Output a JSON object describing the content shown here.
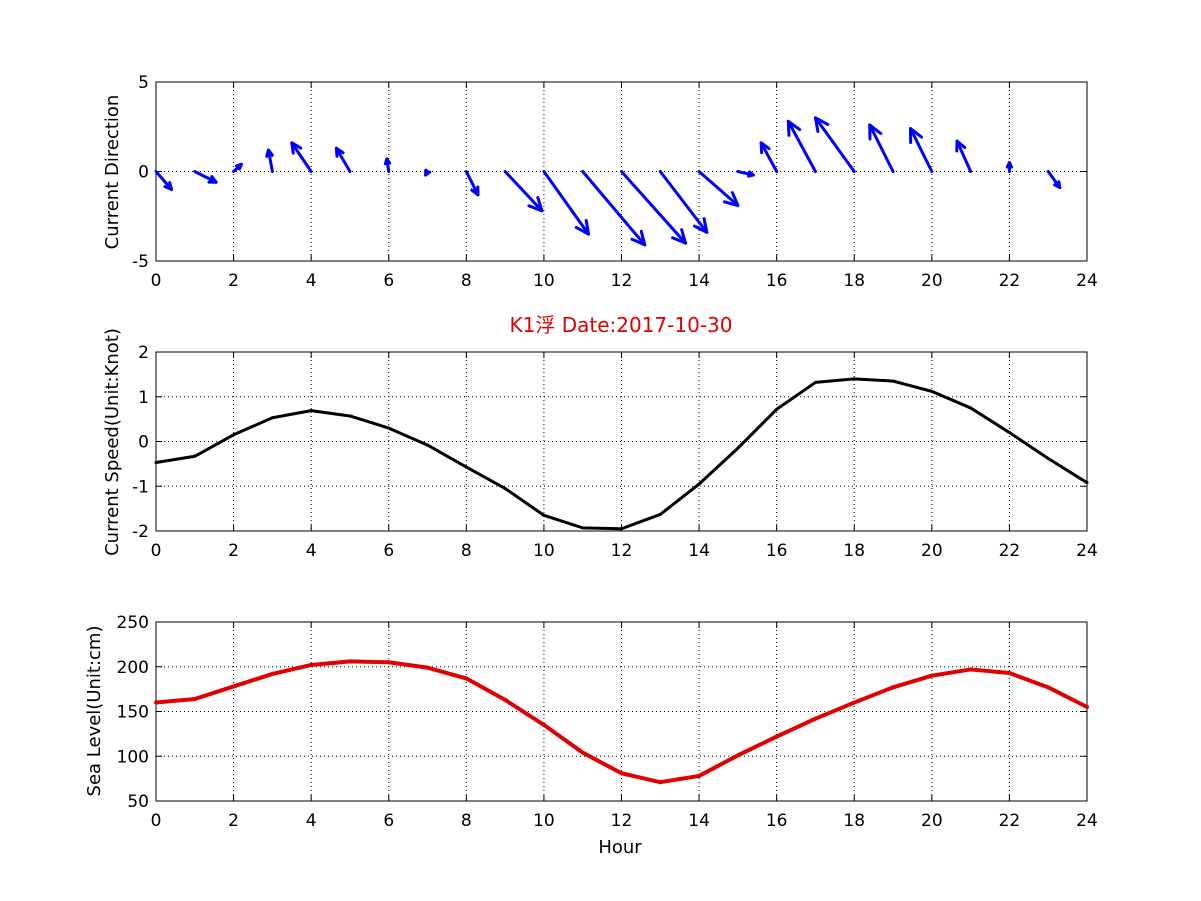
{
  "figure_title": "K1浮    Date:2017-10-30",
  "colors": {
    "direction": "#0000ff",
    "speed": "#000000",
    "sea_level": "#e00000",
    "title": "#e00000"
  },
  "chart_data": [
    {
      "type": "quiver",
      "ylabel": "Current Direction",
      "xlim": [
        0,
        24
      ],
      "ylim": [
        -5,
        5
      ],
      "xticks": [
        0,
        2,
        4,
        6,
        8,
        10,
        12,
        14,
        16,
        18,
        20,
        22,
        24
      ],
      "yticks": [
        -5,
        0,
        5
      ],
      "grid": true,
      "x": [
        0,
        1,
        2,
        3,
        4,
        5,
        6,
        7,
        8,
        9,
        10,
        11,
        12,
        13,
        14,
        15,
        16,
        17,
        18,
        19,
        20,
        21,
        22,
        23
      ],
      "u": [
        0.4,
        0.55,
        0.2,
        -0.1,
        -0.5,
        -0.35,
        -0.05,
        -0.05,
        0.3,
        0.95,
        1.15,
        1.6,
        1.65,
        1.2,
        1.0,
        0.4,
        -0.4,
        -0.7,
        -1.0,
        -0.6,
        -0.55,
        -0.35,
        0.0,
        0.3
      ],
      "v": [
        -1.0,
        -0.6,
        0.4,
        1.2,
        1.6,
        1.3,
        0.7,
        -0.2,
        -1.3,
        -2.2,
        -3.5,
        -4.1,
        -4.0,
        -3.4,
        -1.9,
        -0.2,
        1.6,
        2.8,
        3.0,
        2.6,
        2.4,
        1.7,
        0.5,
        -0.9
      ]
    },
    {
      "type": "line",
      "ylabel": "Current Speed(Unit:Knot)",
      "xlim": [
        0,
        24
      ],
      "ylim": [
        -2,
        2
      ],
      "xticks": [
        0,
        2,
        4,
        6,
        8,
        10,
        12,
        14,
        16,
        18,
        20,
        22,
        24
      ],
      "yticks": [
        -2,
        -1,
        0,
        1,
        2
      ],
      "grid": true,
      "x": [
        0,
        1,
        2,
        3,
        4,
        5,
        6,
        7,
        8,
        9,
        10,
        11,
        12,
        13,
        14,
        15,
        16,
        17,
        18,
        19,
        20,
        21,
        22,
        23,
        24
      ],
      "y": [
        -0.47,
        -0.33,
        0.15,
        0.53,
        0.69,
        0.57,
        0.3,
        -0.08,
        -0.57,
        -1.05,
        -1.65,
        -1.93,
        -1.95,
        -1.63,
        -0.95,
        -0.15,
        0.72,
        1.32,
        1.4,
        1.35,
        1.12,
        0.75,
        0.2,
        -0.38,
        -0.92
      ]
    },
    {
      "type": "line",
      "ylabel": "Sea Level(Unit:cm)",
      "xlabel": "Hour",
      "xlim": [
        0,
        24
      ],
      "ylim": [
        50,
        250
      ],
      "xticks": [
        0,
        2,
        4,
        6,
        8,
        10,
        12,
        14,
        16,
        18,
        20,
        22,
        24
      ],
      "yticks": [
        50,
        100,
        150,
        200,
        250
      ],
      "grid": true,
      "x": [
        0,
        1,
        2,
        3,
        4,
        5,
        6,
        7,
        8,
        9,
        10,
        11,
        12,
        13,
        14,
        15,
        16,
        17,
        18,
        19,
        20,
        21,
        22,
        23,
        24
      ],
      "y": [
        160,
        164,
        178,
        192,
        202,
        206,
        205,
        199,
        187,
        163,
        135,
        104,
        81,
        71,
        78,
        101,
        122,
        142,
        160,
        177,
        190,
        197,
        193,
        177,
        155
      ]
    }
  ]
}
